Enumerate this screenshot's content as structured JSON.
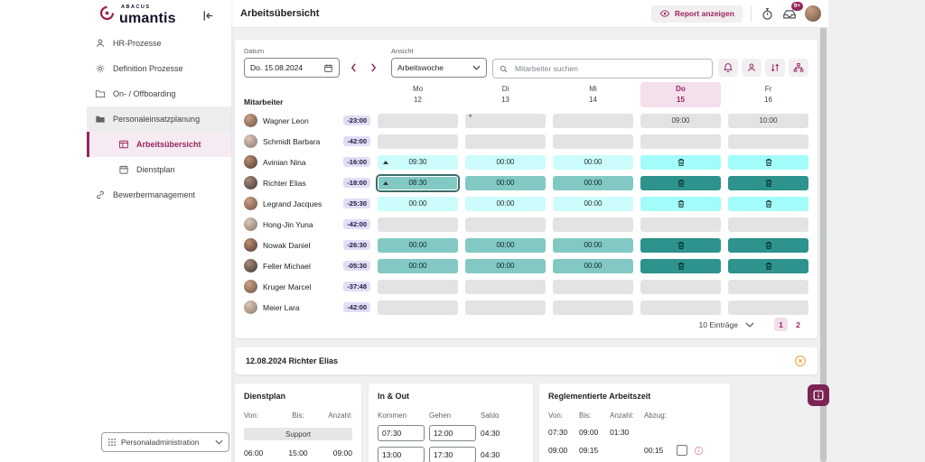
{
  "brand": {
    "super": "ABACUS",
    "name": "umantis"
  },
  "topbar": {
    "title": "Arbeitsübersicht",
    "report_button": "Report anzeigen",
    "mail_badge": "9+"
  },
  "sidebar": {
    "items": [
      {
        "label": "HR-Prozesse",
        "icon": "person",
        "level": 0
      },
      {
        "label": "Definition Prozesse",
        "icon": "gear",
        "level": 0
      },
      {
        "label": "On- / Offboarding",
        "icon": "folder",
        "level": 0
      },
      {
        "label": "Personaleinsatzplanung",
        "icon": "folder-filled",
        "level": 0,
        "highlighted": true
      },
      {
        "label": "Arbeitsübersicht",
        "icon": "table",
        "level": 1,
        "active": true
      },
      {
        "label": "Dienstplan",
        "icon": "calendar",
        "level": 1
      },
      {
        "label": "Bewerbermanagement",
        "icon": "link",
        "level": 0
      }
    ],
    "footer_select": {
      "label": "Personaladministration",
      "icon": "grid"
    }
  },
  "filters": {
    "datum_label": "Datum",
    "datum_value": "Do. 15.08.2024",
    "ansicht_label": "Ansicht",
    "ansicht_value": "Arbeitswoche",
    "search_placeholder": "Mitarbeiter suchen"
  },
  "table": {
    "employee_col": "Mitarbeiter",
    "days": [
      {
        "name": "Mo",
        "date": "12"
      },
      {
        "name": "Di",
        "date": "13"
      },
      {
        "name": "Mi",
        "date": "14"
      },
      {
        "name": "Do",
        "date": "15",
        "active": true
      },
      {
        "name": "Fr",
        "date": "16"
      }
    ],
    "rows": [
      {
        "name": "Wagner Leon",
        "delta": "-23:00",
        "cells": [
          {
            "style": "gray"
          },
          {
            "style": "gray",
            "note": "*"
          },
          {
            "style": "gray"
          },
          {
            "style": "gray",
            "text": "09:00"
          },
          {
            "style": "gray",
            "text": "10:00"
          }
        ]
      },
      {
        "name": "Schmidt Barbara",
        "delta": "-42:00",
        "cells": [
          {
            "style": "gray"
          },
          {
            "style": "gray"
          },
          {
            "style": "gray"
          },
          {
            "style": "gray"
          },
          {
            "style": "gray"
          }
        ]
      },
      {
        "name": "Avinian Nina",
        "delta": "-16:00",
        "cells": [
          {
            "style": "cyan",
            "text": "09:30",
            "marker": true
          },
          {
            "style": "cyan",
            "text": "00:00"
          },
          {
            "style": "cyan",
            "text": "00:00"
          },
          {
            "style": "cyan-bright",
            "icon": "trash"
          },
          {
            "style": "cyan-bright",
            "icon": "trash"
          }
        ]
      },
      {
        "name": "Richter Elias",
        "delta": "-18:00",
        "cells": [
          {
            "style": "teal",
            "text": "08:30",
            "marker": true,
            "selected": true
          },
          {
            "style": "teal",
            "text": "00:00"
          },
          {
            "style": "teal",
            "text": "00:00"
          },
          {
            "style": "teal-dark",
            "icon": "trash"
          },
          {
            "style": "teal-dark",
            "icon": "trash"
          }
        ]
      },
      {
        "name": "Legrand Jacques",
        "delta": "-25:30",
        "cells": [
          {
            "style": "cyan",
            "text": "00:00"
          },
          {
            "style": "cyan",
            "text": "00:00"
          },
          {
            "style": "cyan",
            "text": "00:00"
          },
          {
            "style": "cyan-bright",
            "icon": "trash"
          },
          {
            "style": "cyan-bright",
            "icon": "trash"
          }
        ]
      },
      {
        "name": "Hong-Jin Yuna",
        "delta": "-42:00",
        "cells": [
          {
            "style": "gray"
          },
          {
            "style": "gray"
          },
          {
            "style": "gray"
          },
          {
            "style": "gray"
          },
          {
            "style": "gray"
          }
        ]
      },
      {
        "name": "Nowak Daniel",
        "delta": "-26:30",
        "cells": [
          {
            "style": "teal",
            "text": "00:00"
          },
          {
            "style": "teal",
            "text": "00:00"
          },
          {
            "style": "teal",
            "text": "00:00"
          },
          {
            "style": "teal-dark",
            "icon": "trash"
          },
          {
            "style": "teal-dark",
            "icon": "trash"
          }
        ]
      },
      {
        "name": "Feller Michael",
        "delta": "-05:30",
        "cells": [
          {
            "style": "teal",
            "text": "00:00"
          },
          {
            "style": "teal",
            "text": "00:00"
          },
          {
            "style": "teal",
            "text": "00:00"
          },
          {
            "style": "teal-dark",
            "icon": "trash"
          },
          {
            "style": "teal-dark",
            "icon": "trash"
          }
        ]
      },
      {
        "name": "Kruger Marcel",
        "delta": "-37:48",
        "cells": [
          {
            "style": "gray"
          },
          {
            "style": "gray"
          },
          {
            "style": "gray"
          },
          {
            "style": "gray"
          },
          {
            "style": "gray"
          }
        ]
      },
      {
        "name": "Meier Lara",
        "delta": "-42:00",
        "cells": [
          {
            "style": "gray"
          },
          {
            "style": "gray"
          },
          {
            "style": "gray"
          },
          {
            "style": "gray"
          },
          {
            "style": "gray"
          }
        ]
      }
    ],
    "pagination": {
      "count_label": "10 Einträge",
      "pages": [
        "1",
        "2"
      ],
      "active_page": "1"
    }
  },
  "detail": {
    "header": "12.08.2024 Richter Elias",
    "dienstplan": {
      "title": "Dienstplan",
      "headers": [
        "Von:",
        "Bis:",
        "Anzahl:"
      ],
      "group_label": "Support",
      "rows": [
        [
          "06:00",
          "15:00",
          "09:00"
        ]
      ]
    },
    "in_out": {
      "title": "In & Out",
      "headers": [
        "Kommen",
        "Gehen",
        "Saldo"
      ],
      "rows": [
        {
          "kommen": "07:30",
          "gehen": "12:00",
          "saldo": "04:30"
        },
        {
          "kommen": "13:00",
          "gehen": "17:30",
          "saldo": "04:30"
        }
      ]
    },
    "reglementiert": {
      "title": "Reglementierte Arbeitszeit",
      "headers": [
        "Von:",
        "Bis:",
        "Anzahl:",
        "Abzug:"
      ],
      "rows": [
        {
          "von": "07:30",
          "bis": "09:00",
          "anzahl": "01:30",
          "abzug": ""
        },
        {
          "von": "09:00",
          "bis": "09:15",
          "anzahl": "",
          "abzug": "00:15",
          "checkbox": true,
          "info": true
        }
      ]
    }
  },
  "colors": {
    "accent": "#96255e",
    "teal_dark": "#2d938c",
    "teal": "#82c9c3",
    "cyan": "#ccfdfc",
    "cyan_bright": "#a2fcf9",
    "cell_gray": "#e3e3e5",
    "badge_bg": "#e2dcf7",
    "day_active_bg": "#f4dfec",
    "close_icon": "#eaa43c"
  }
}
